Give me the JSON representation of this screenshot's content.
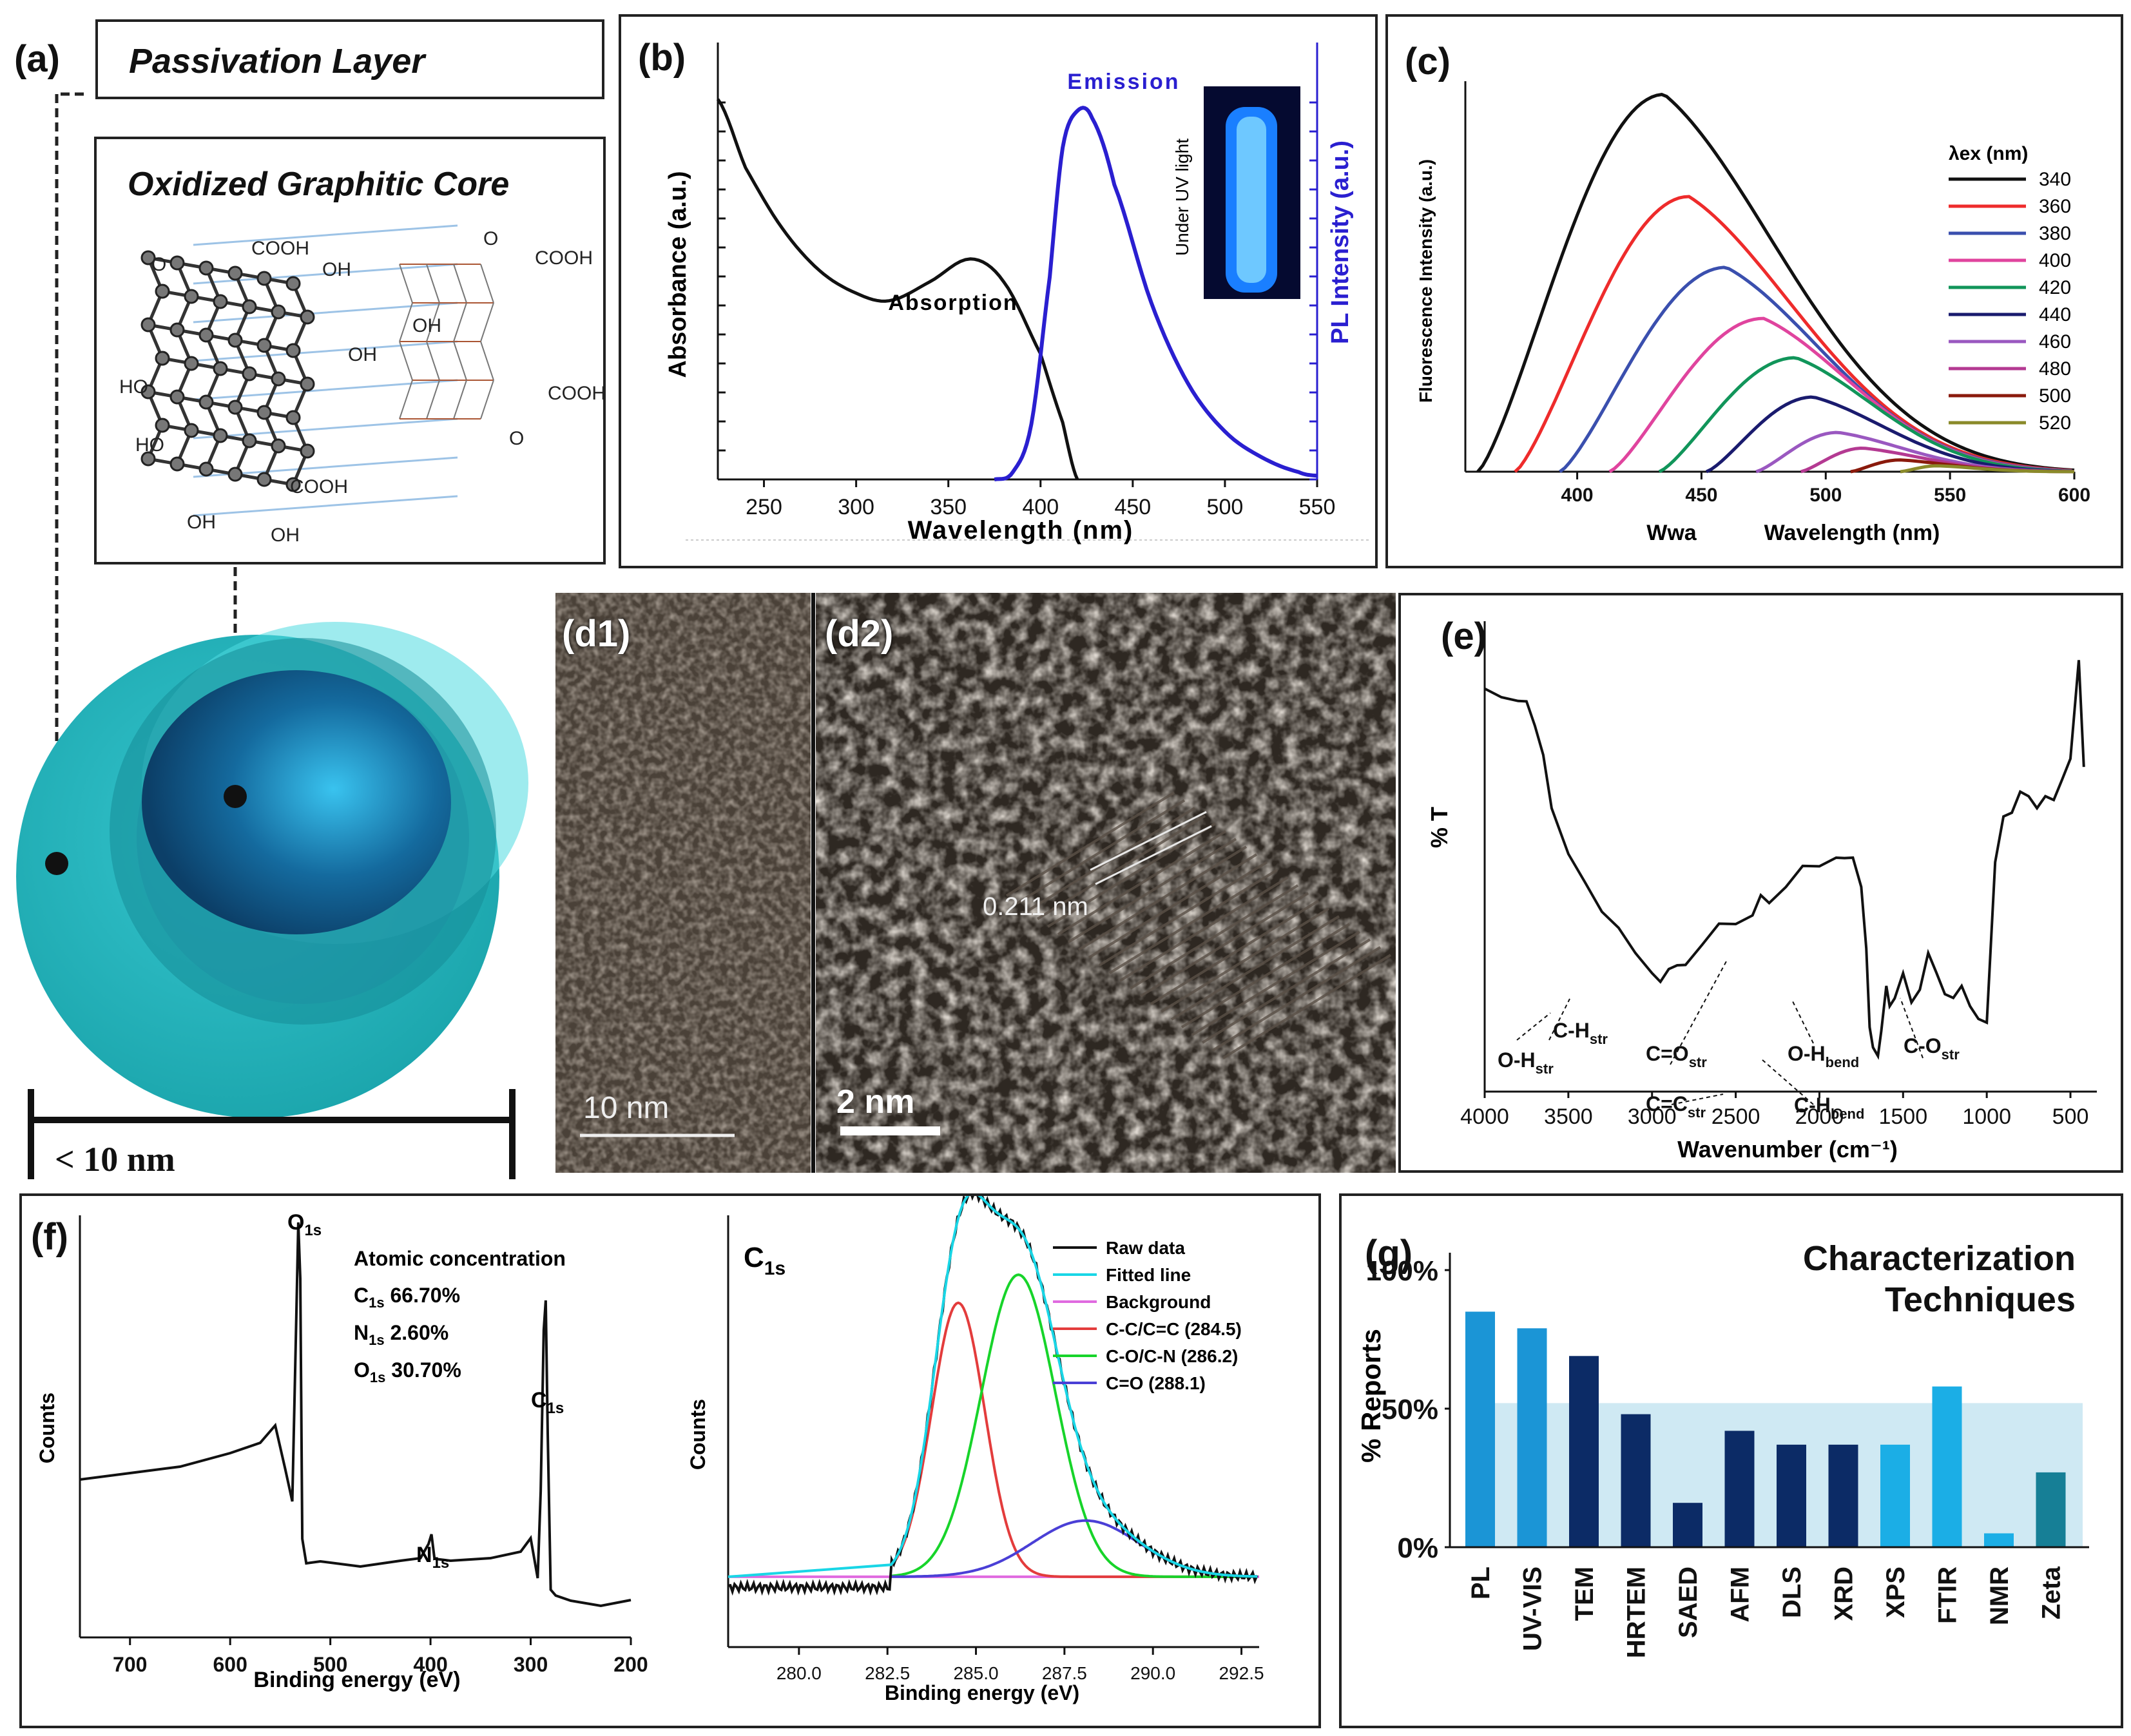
{
  "panel_a": {
    "label": "(a)",
    "passivation_label": "Passivation Layer",
    "core_label": "Oxidized Graphitic Core",
    "scale_label": "< 10 nm",
    "mol_labels": [
      "O",
      "COOH",
      "OH",
      "HO",
      "HO",
      "OH",
      "OH",
      "OH",
      "COOH",
      "OH",
      "O",
      "COOH",
      "COOH",
      "O"
    ]
  },
  "panel_b": {
    "label": "(b)",
    "emission_label": "Emission",
    "absorption_label": "Absorption",
    "inset_label": "Under UV light",
    "chart_data": {
      "type": "line",
      "xlabel": "Wavelength (nm)",
      "ylabel_left": "Absorbance (a.u.)",
      "ylabel_right": "PL Intensity (a.u.)",
      "xlim": [
        225,
        550
      ],
      "xticks": [
        "250",
        "300",
        "350",
        "400",
        "450",
        "500",
        "550"
      ],
      "series": [
        {
          "name": "Absorption",
          "color": "#111111",
          "x": [
            225,
            240,
            260,
            280,
            300,
            318,
            340,
            362,
            380,
            400,
            412,
            420
          ],
          "y": [
            1.0,
            0.82,
            0.66,
            0.55,
            0.49,
            0.47,
            0.52,
            0.58,
            0.52,
            0.33,
            0.15,
            0.0
          ]
        },
        {
          "name": "Emission",
          "color": "#2a1fd0",
          "x": [
            375,
            385,
            395,
            405,
            412,
            420,
            428,
            440,
            460,
            480,
            500,
            520,
            540,
            550
          ],
          "y": [
            0.0,
            0.02,
            0.15,
            0.55,
            0.9,
            1.0,
            0.98,
            0.8,
            0.48,
            0.26,
            0.13,
            0.06,
            0.02,
            0.01
          ]
        }
      ]
    }
  },
  "panel_c": {
    "label": "(c)",
    "legend_title": "λex (nm)",
    "extra_label": "Wwa",
    "chart_data": {
      "type": "line",
      "xlabel": "Wavelength (nm)",
      "ylabel": "Fluorescence Intensity (a.u.)",
      "xlim": [
        355,
        600
      ],
      "ylim": [
        0,
        100
      ],
      "xticks": [
        "400",
        "450",
        "500",
        "550",
        "600"
      ],
      "series": [
        {
          "name": "340",
          "color": "#111111",
          "x0": 360,
          "peak_x": 435,
          "peak_y": 96
        },
        {
          "name": "360",
          "color": "#ee2b2b",
          "x0": 375,
          "peak_x": 445,
          "peak_y": 70
        },
        {
          "name": "380",
          "color": "#3a4fae",
          "x0": 393,
          "peak_x": 460,
          "peak_y": 52
        },
        {
          "name": "400",
          "color": "#e0449e",
          "x0": 413,
          "peak_x": 475,
          "peak_y": 39
        },
        {
          "name": "420",
          "color": "#11955a",
          "x0": 433,
          "peak_x": 488,
          "peak_y": 29
        },
        {
          "name": "440",
          "color": "#1a1b6e",
          "x0": 452,
          "peak_x": 495,
          "peak_y": 19
        },
        {
          "name": "460",
          "color": "#9a58c0",
          "x0": 472,
          "peak_x": 505,
          "peak_y": 10
        },
        {
          "name": "480",
          "color": "#b43a92",
          "x0": 490,
          "peak_x": 515,
          "peak_y": 6
        },
        {
          "name": "500",
          "color": "#8a1a0c",
          "x0": 510,
          "peak_x": 530,
          "peak_y": 3
        },
        {
          "name": "520",
          "color": "#8a8a2a",
          "x0": 530,
          "peak_x": 545,
          "peak_y": 1.5
        }
      ]
    }
  },
  "panel_d": {
    "label1": "(d1)",
    "label2": "(d2)",
    "scale1": "10 nm",
    "scale2": "2 nm",
    "spacing": "0.211 nm"
  },
  "panel_e": {
    "label": "(e)",
    "chart_data": {
      "type": "line",
      "xlabel": "Wavenumber (cm⁻¹)",
      "ylabel": "% T",
      "xlim": [
        4000,
        400
      ],
      "xticks": [
        "4000",
        "3500",
        "3000",
        "2500",
        "2000",
        "1500",
        "1000",
        "500"
      ],
      "series": [
        {
          "name": "FTIR",
          "color": "#111111",
          "x": [
            4000,
            3900,
            3800,
            3750,
            3700,
            3650,
            3600,
            3500,
            3400,
            3300,
            3200,
            3100,
            3000,
            2950,
            2900,
            2850,
            2800,
            2700,
            2600,
            2500,
            2400,
            2350,
            2300,
            2200,
            2100,
            2000,
            1900,
            1850,
            1800,
            1750,
            1720,
            1700,
            1680,
            1650,
            1630,
            1600,
            1580,
            1550,
            1500,
            1450,
            1400,
            1350,
            1300,
            1250,
            1200,
            1150,
            1100,
            1050,
            1000,
            950,
            900,
            850,
            800,
            750,
            700,
            650,
            600,
            550,
            500,
            450,
            420
          ],
          "y": [
            91,
            90,
            88,
            89,
            82,
            76,
            62,
            52,
            44,
            38,
            33,
            28,
            22,
            21,
            23,
            25,
            24,
            30,
            34,
            35,
            36,
            42,
            39,
            44,
            48,
            49,
            50,
            51,
            50,
            44,
            28,
            10,
            4,
            3,
            8,
            20,
            14,
            17,
            22,
            16,
            18,
            28,
            22,
            18,
            16,
            20,
            14,
            12,
            10,
            50,
            60,
            62,
            66,
            66,
            62,
            66,
            64,
            70,
            74,
            99,
            72
          ]
        }
      ],
      "annotations": [
        {
          "text": "O-H",
          "sub": "str"
        },
        {
          "text": "C-H",
          "sub": "str"
        },
        {
          "text": "C=O",
          "sub": "str"
        },
        {
          "text": "C=C",
          "sub": "str"
        },
        {
          "text": "O-H",
          "sub": "bend"
        },
        {
          "text": "C-H",
          "sub": "bend"
        },
        {
          "text": "C-O",
          "sub": "str"
        }
      ]
    }
  },
  "panel_f": {
    "label": "(f)",
    "atomic_title": "Atomic concentration",
    "atomic": [
      {
        "el": "C",
        "sub": "1s",
        "val": " 66.70%"
      },
      {
        "el": "N",
        "sub": "1s",
        "val": "  2.60%"
      },
      {
        "el": "O",
        "sub": "1s",
        "val": " 30.70%"
      }
    ],
    "peak_labels": [
      {
        "el": "O",
        "sub": "1s"
      },
      {
        "el": "N",
        "sub": "1s"
      },
      {
        "el": "C",
        "sub": "1s"
      }
    ],
    "survey_chart_data": {
      "type": "line",
      "xlabel": "Binding energy (eV)",
      "ylabel": "Counts",
      "xlim": [
        750,
        200
      ],
      "xticks": [
        "700",
        "600",
        "500",
        "400",
        "300",
        "200"
      ],
      "series": [
        {
          "name": "Survey",
          "color": "#111111",
          "x": [
            750,
            700,
            650,
            600,
            570,
            555,
            545,
            538,
            534,
            532,
            530,
            528,
            524,
            510,
            470,
            430,
            410,
            402,
            399,
            396,
            380,
            340,
            310,
            300,
            293,
            290,
            287,
            285,
            283,
            280,
            275,
            260,
            230,
            200
          ],
          "y": [
            0.33,
            0.35,
            0.37,
            0.4,
            0.43,
            0.47,
            0.36,
            0.28,
            0.75,
            1.0,
            0.85,
            0.18,
            0.12,
            0.12,
            0.11,
            0.12,
            0.13,
            0.17,
            0.19,
            0.13,
            0.12,
            0.13,
            0.15,
            0.18,
            0.08,
            0.3,
            0.72,
            0.8,
            0.45,
            0.05,
            0.03,
            0.02,
            0.01,
            0.02
          ]
        }
      ]
    },
    "c1s_chart_data": {
      "type": "line",
      "title": "C1s",
      "xlabel": "Binding energy (eV)",
      "ylabel": "Counts",
      "xlim": [
        278,
        293
      ],
      "xticks": [
        "280.0",
        "282.5",
        "285.0",
        "287.5",
        "290.0",
        "292.5"
      ],
      "legend": [
        {
          "name": "Raw data",
          "color": "#111111"
        },
        {
          "name": "Fitted line",
          "color": "#19d6e6"
        },
        {
          "name": "Background",
          "color": "#e06ae0"
        },
        {
          "name": "C-C/C=C (284.5)",
          "color": "#e33c3c"
        },
        {
          "name": "C-O/C-N (286.2)",
          "color": "#17d42a"
        },
        {
          "name": "C=O (288.1)",
          "color": "#4a3fd6"
        }
      ],
      "components": [
        {
          "center": 284.5,
          "height": 0.78,
          "width": 0.75
        },
        {
          "center": 286.2,
          "height": 0.86,
          "width": 1.05
        },
        {
          "center": 288.1,
          "height": 0.16,
          "width": 1.5
        }
      ],
      "baseline": 0.035
    }
  },
  "panel_g": {
    "label": "(g)",
    "title_line1": "Characterization",
    "title_line2": "Techniques",
    "chart_data": {
      "type": "bar",
      "ylabel": "% Reports",
      "ylim": [
        0,
        100
      ],
      "yticks": [
        "0%",
        "50%",
        "100%"
      ],
      "categories": [
        "PL",
        "UV-VIS",
        "TEM",
        "HRTEM",
        "SAED",
        "AFM",
        "DLS",
        "XRD",
        "XPS",
        "FTIR",
        "NMR",
        "Zeta"
      ],
      "values": [
        85,
        79,
        69,
        48,
        16,
        42,
        37,
        37,
        37,
        58,
        5,
        27
      ],
      "colors": [
        "#1b95d6",
        "#1b95d6",
        "#0c2b66",
        "#0c2b66",
        "#0c2b66",
        "#0c2b66",
        "#0c2b66",
        "#0c2b66",
        "#1baee6",
        "#1baee6",
        "#1baee6",
        "#167f96"
      ],
      "band": [
        0,
        52
      ]
    }
  }
}
